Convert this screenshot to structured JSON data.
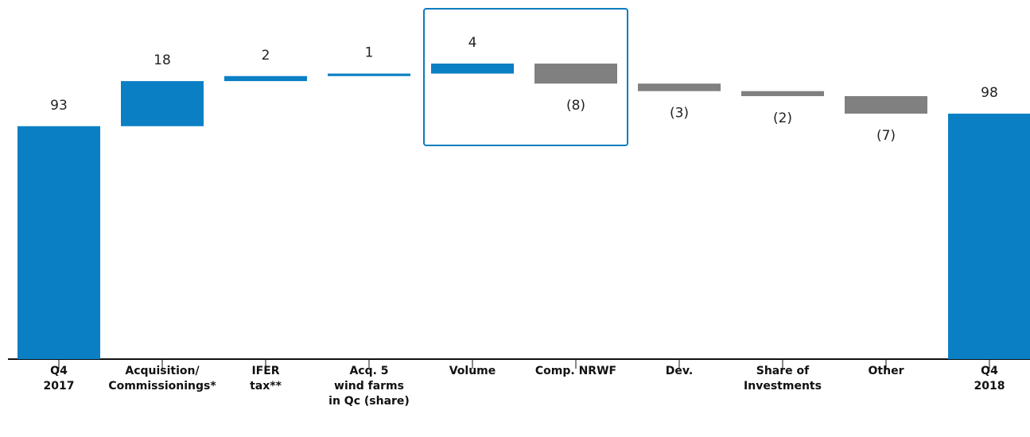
{
  "chart_data": {
    "type": "waterfall",
    "categories": [
      "Q4\n2017",
      "Acquisition/\nCommissionings*",
      "IFER\ntax**",
      "Acq. 5\nwind farms\nin Qc (share)",
      "Volume",
      "Comp. NRWF",
      "Dev.",
      "Share of\nInvestments",
      "Other",
      "Q4\n2018"
    ],
    "values": [
      93,
      18,
      2,
      1,
      4,
      -8,
      -3,
      -2,
      -7,
      98
    ],
    "value_labels": [
      "93",
      "18",
      "2",
      "1",
      "4",
      "(8)",
      "(3)",
      "(2)",
      "(7)",
      "98"
    ],
    "color": "#0a7fc4",
    "negative_color": "#808080"
  }
}
